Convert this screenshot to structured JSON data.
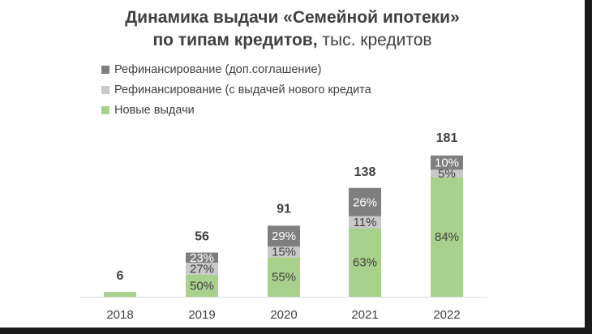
{
  "title": {
    "line1": "Динамика выдачи «Семейной ипотеки»",
    "line2_bold": "по типам кредитов,",
    "line2_unit": " тыс. кредитов"
  },
  "chart_data": {
    "type": "bar",
    "stacked": true,
    "categories": [
      "2018",
      "2019",
      "2020",
      "2021",
      "2022"
    ],
    "totals": [
      6,
      56,
      91,
      138,
      181
    ],
    "series": [
      {
        "name": "Новые выдачи",
        "color": "#a9d18e",
        "label_color": "#404040",
        "shares": [
          100,
          50,
          55,
          63,
          84
        ],
        "labels": [
          "",
          "50%",
          "55%",
          "63%",
          "84%"
        ]
      },
      {
        "name": "Рефинансирование (с выдачей нового кредита",
        "color": "#c9c9c9",
        "label_color": "#404040",
        "shares": [
          0,
          27,
          15,
          11,
          5
        ],
        "labels": [
          "",
          "27%",
          "15%",
          "11%",
          "5%"
        ]
      },
      {
        "name": "Рефинансирование (доп.соглашение)",
        "color": "#7f7f7f",
        "label_color": "#ffffff",
        "shares": [
          0,
          23,
          29,
          26,
          10
        ],
        "labels": [
          "",
          "23%",
          "29%",
          "26%",
          "10%"
        ]
      }
    ],
    "legend_order": [
      2,
      1,
      0
    ],
    "ylim": [
      0,
      181
    ],
    "grid": false,
    "legend": "top-left"
  }
}
